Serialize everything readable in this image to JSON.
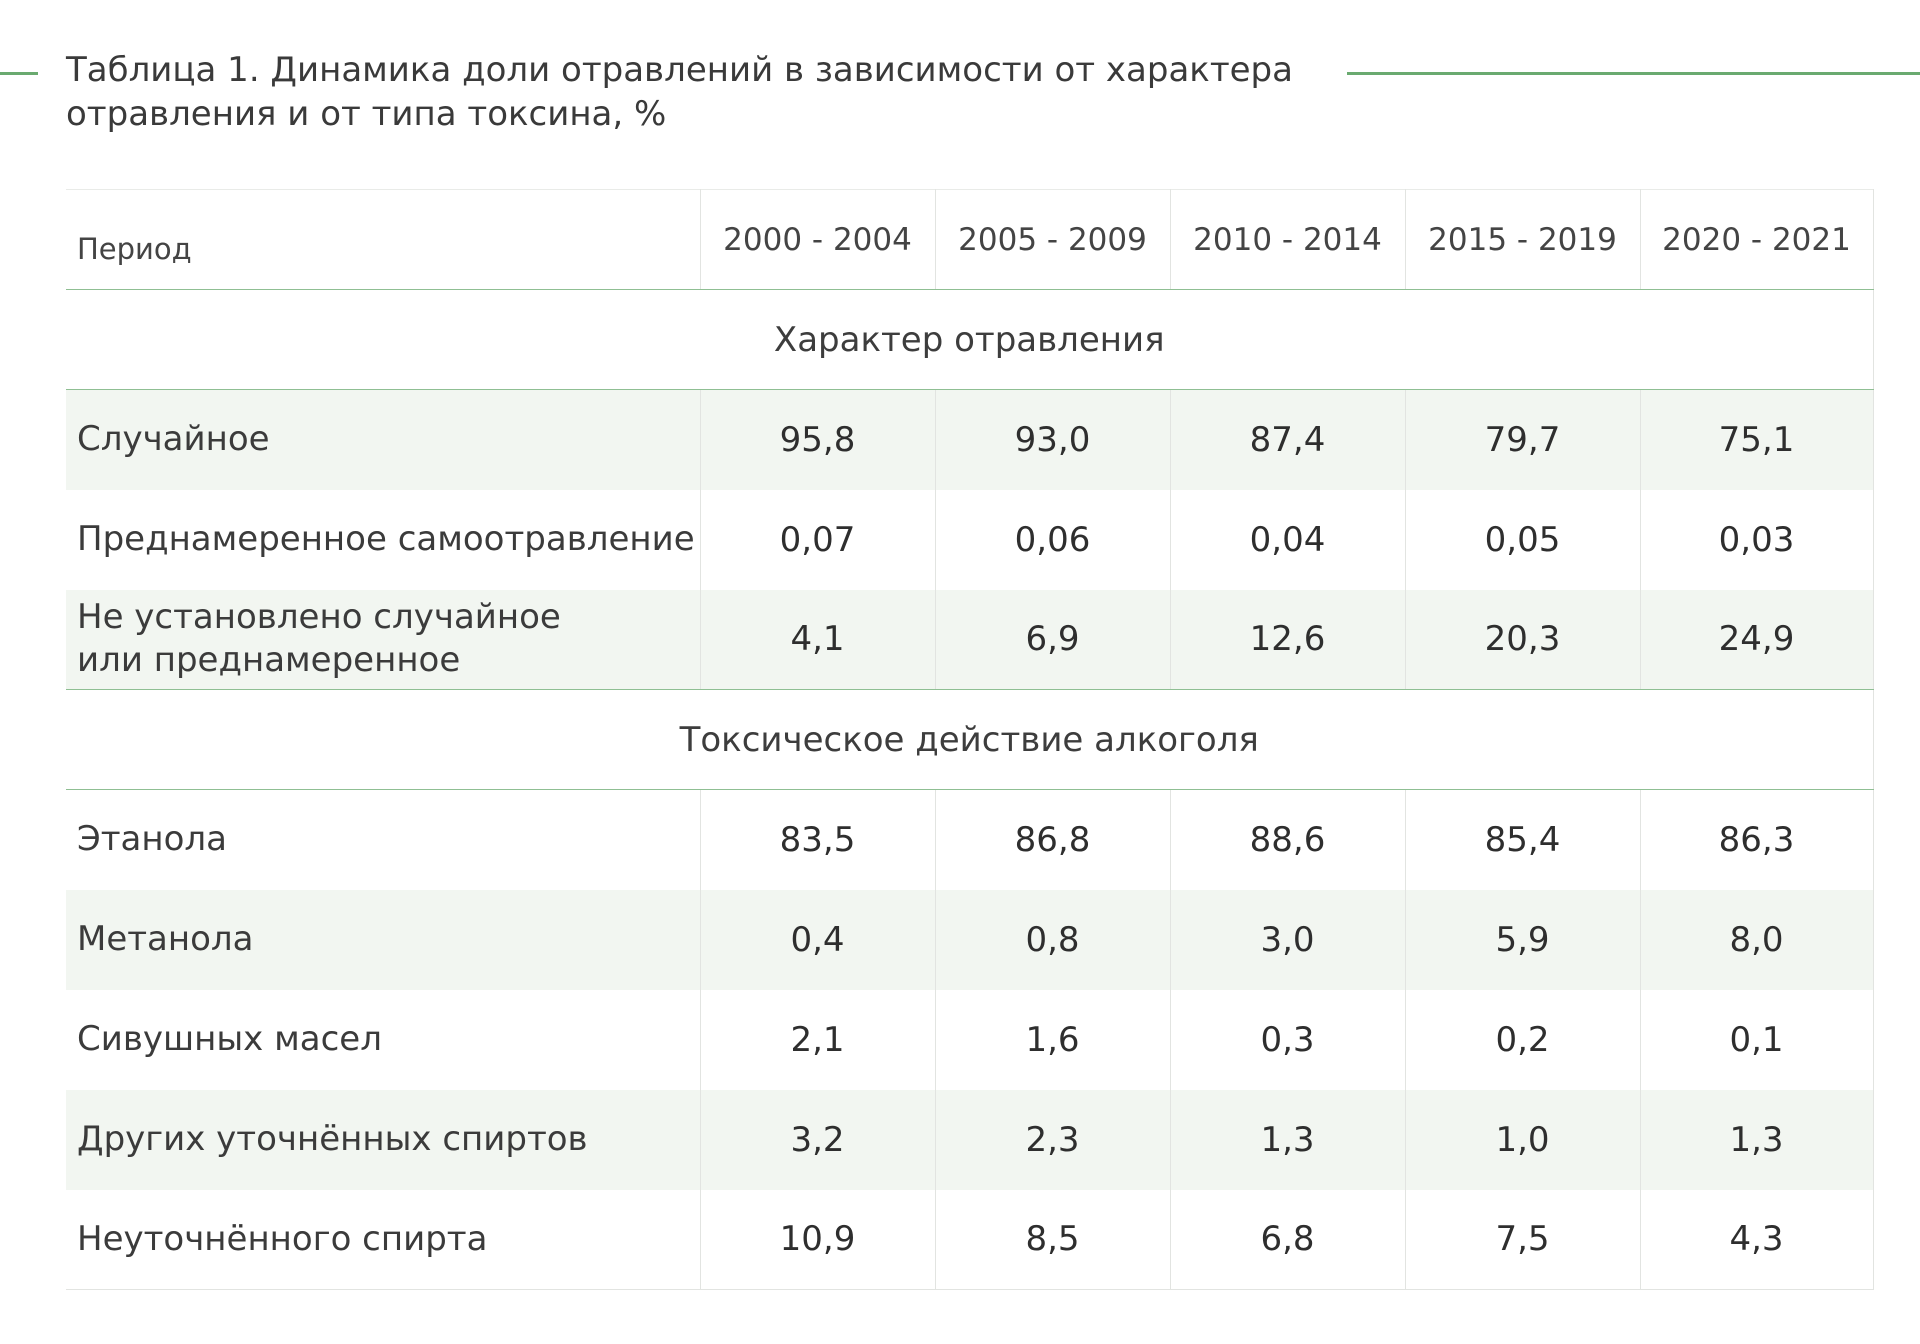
{
  "title": {
    "line1": "Таблица 1. Динамика доли отравлений в зависимости от характера",
    "line2": "отравления и от типа токсина, %"
  },
  "table": {
    "header_label": "Период",
    "columns": [
      "2000 - 2004",
      "2005 - 2009",
      "2010 - 2014",
      "2015 - 2019",
      "2020 - 2021"
    ],
    "sections": [
      {
        "title": "Характер отравления",
        "rows": [
          {
            "label_lines": [
              "Случайное"
            ],
            "values": [
              "95,8",
              "93,0",
              "87,4",
              "79,7",
              "75,1"
            ]
          },
          {
            "label_lines": [
              "Преднамеренное самоотравление"
            ],
            "values": [
              "0,07",
              "0,06",
              "0,04",
              "0,05",
              "0,03"
            ]
          },
          {
            "label_lines": [
              "Не установлено случайное",
              "или преднамеренное"
            ],
            "values": [
              "4,1",
              "6,9",
              "12,6",
              "20,3",
              "24,9"
            ]
          }
        ]
      },
      {
        "title": "Токсическое действие алкоголя",
        "rows": [
          {
            "label_lines": [
              "Этанола"
            ],
            "values": [
              "83,5",
              "86,8",
              "88,6",
              "85,4",
              "86,3"
            ]
          },
          {
            "label_lines": [
              "Метанола"
            ],
            "values": [
              "0,4",
              "0,8",
              "3,0",
              "5,9",
              "8,0"
            ]
          },
          {
            "label_lines": [
              "Сивушных масел"
            ],
            "values": [
              "2,1",
              "1,6",
              "0,3",
              "0,2",
              "0,1"
            ]
          },
          {
            "label_lines": [
              "Других уточнённых спиртов"
            ],
            "values": [
              "3,2",
              "2,3",
              "1,3",
              "1,0",
              "1,3"
            ]
          },
          {
            "label_lines": [
              "Неуточнённого спирта"
            ],
            "values": [
              "10,9",
              "8,5",
              "6,8",
              "7,5",
              "4,3"
            ]
          }
        ]
      }
    ]
  },
  "colors": {
    "accent_rule": "#6aaa70",
    "row_shade": "#f2f6f1",
    "section_border": "#8fbf93"
  }
}
